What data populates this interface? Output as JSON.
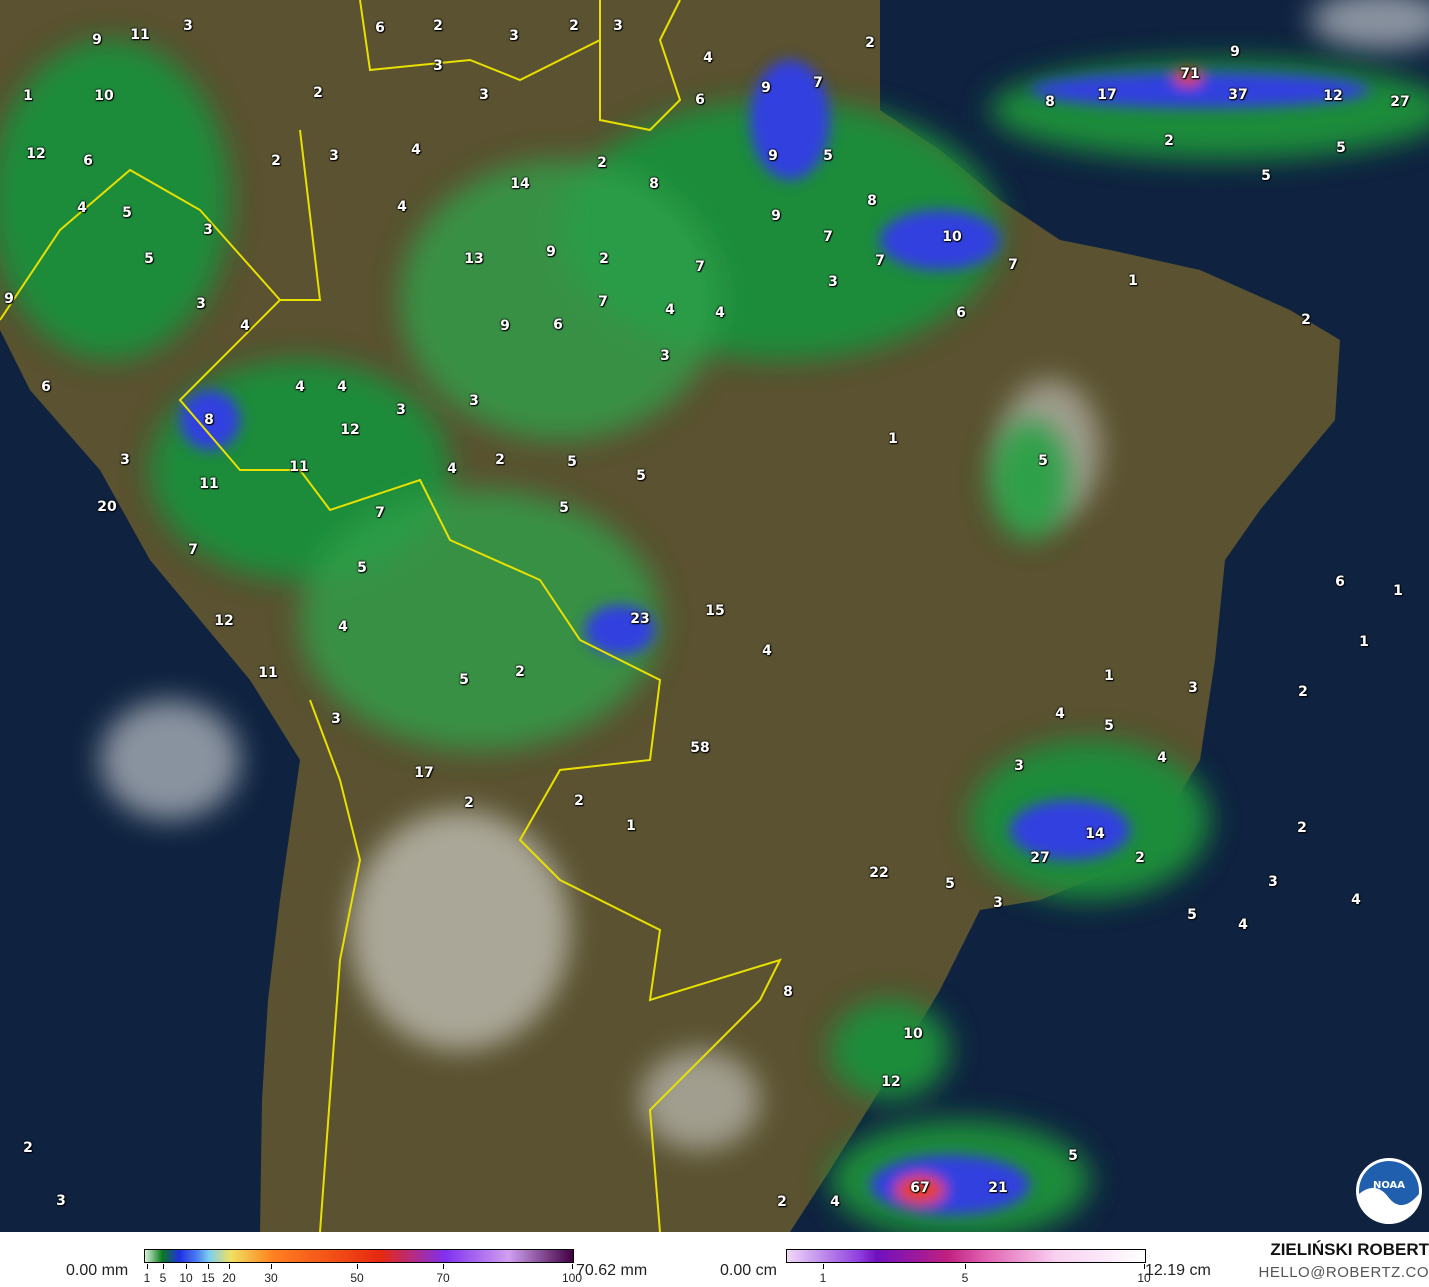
{
  "map": {
    "type": "precipitation accumulation map",
    "colors": {
      "ocean": "#0f2340",
      "land": "#5a5230",
      "rain_light": "#2fa04a",
      "rain_mid": "#0b6b1e",
      "rain_heavy": "#3340e0",
      "borders": "#e8e000"
    },
    "labels": [
      "9",
      "11",
      "3",
      "6",
      "2",
      "3",
      "2",
      "3",
      "4",
      "1",
      "10",
      "2",
      "3",
      "3",
      "9",
      "7",
      "2",
      "12",
      "6",
      "2",
      "3",
      "4",
      "6",
      "14",
      "8",
      "5",
      "9",
      "9",
      "7",
      "8",
      "7",
      "10",
      "7",
      "4",
      "5",
      "4",
      "5",
      "3",
      "2",
      "13",
      "9",
      "2",
      "7",
      "6",
      "9",
      "3",
      "4",
      "4",
      "7",
      "3",
      "9",
      "6",
      "6",
      "3",
      "4",
      "4",
      "4",
      "3",
      "3",
      "8",
      "3",
      "12",
      "1",
      "4",
      "5",
      "2",
      "5",
      "5",
      "11",
      "11",
      "20",
      "7",
      "7",
      "5",
      "4",
      "5",
      "2",
      "23",
      "15",
      "4",
      "12",
      "11",
      "3",
      "17",
      "2",
      "2",
      "1",
      "58",
      "5",
      "22",
      "27",
      "14",
      "5",
      "3",
      "2",
      "10",
      "12",
      "67",
      "21",
      "5",
      "4",
      "2",
      "3",
      "2",
      "8",
      "71",
      "37",
      "12",
      "27",
      "17",
      "8",
      "9",
      "2",
      "5",
      "5",
      "1",
      "6",
      "2",
      "1",
      "2",
      "5",
      "1",
      "4",
      "3",
      "2",
      "1",
      "3",
      "3",
      "4",
      "5",
      "4",
      "4"
    ],
    "logo_text": "NOAA"
  },
  "legend": {
    "rain": {
      "min_label": "0.00 mm",
      "max_label": "70.62 mm",
      "ticks": [
        "1",
        "5",
        "10",
        "15",
        "20",
        "30",
        "50",
        "70",
        "100"
      ]
    },
    "snow": {
      "min_label": "0.00 cm",
      "max_label": "12.19 cm",
      "ticks": [
        "1",
        "5",
        "10"
      ]
    },
    "author": "ZIELIŃSKI ROBERT",
    "email": "HELLO@ROBERTZ.CO"
  }
}
